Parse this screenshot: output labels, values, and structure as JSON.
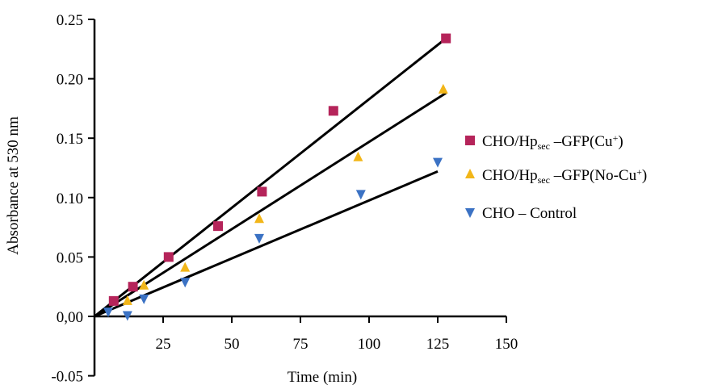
{
  "chart_data": {
    "type": "scatter",
    "title": "",
    "xlabel": "Time (min)",
    "ylabel": "Absorbance at 530 nm",
    "xlim": [
      0,
      150
    ],
    "ylim": [
      -0.05,
      0.25
    ],
    "x_ticks": [
      25,
      50,
      75,
      100,
      125,
      150
    ],
    "x_tick_labels": [
      "25",
      "50",
      "75",
      "100",
      "125",
      "150"
    ],
    "y_ticks": [
      -0.05,
      0.0,
      0.05,
      0.1,
      0.15,
      0.2,
      0.25
    ],
    "y_tick_labels": [
      "-0.05",
      "0,00",
      "0.05",
      "0.10",
      "0.15",
      "0.20",
      "0.25"
    ],
    "grid": false,
    "legend_position": "right",
    "series": [
      {
        "name_parts": {
          "pre": "CHO/Hp",
          "sub": "sec",
          "mid": " –GFP(Cu",
          "sup": "+",
          "post": ")"
        },
        "marker": "square",
        "color": "#b5245a",
        "x": [
          7,
          14,
          27,
          45,
          61,
          87,
          128
        ],
        "y": [
          0.013,
          0.025,
          0.05,
          0.076,
          0.105,
          0.173,
          0.234
        ],
        "fit": {
          "x": [
            0,
            128
          ],
          "y": [
            0,
            0.234
          ]
        }
      },
      {
        "name_parts": {
          "pre": "CHO/Hp",
          "sub": "sec",
          "mid": " –GFP(No-Cu",
          "sup": "+",
          "post": ")"
        },
        "marker": "triangle-up",
        "color": "#f2b619",
        "x": [
          12,
          18,
          33,
          60,
          96,
          127
        ],
        "y": [
          0.013,
          0.026,
          0.041,
          0.082,
          0.134,
          0.191
        ],
        "fit": {
          "x": [
            0,
            128
          ],
          "y": [
            0,
            0.188
          ]
        }
      },
      {
        "name_parts": {
          "pre": "CHO – Control",
          "sub": "",
          "mid": "",
          "sup": "",
          "post": ""
        },
        "marker": "triangle-down",
        "color": "#3b72c4",
        "x": [
          5,
          12,
          18,
          33,
          60,
          97,
          125
        ],
        "y": [
          0.004,
          0.001,
          0.015,
          0.029,
          0.066,
          0.103,
          0.13
        ],
        "fit": {
          "x": [
            0,
            125
          ],
          "y": [
            0,
            0.122
          ]
        }
      }
    ]
  }
}
